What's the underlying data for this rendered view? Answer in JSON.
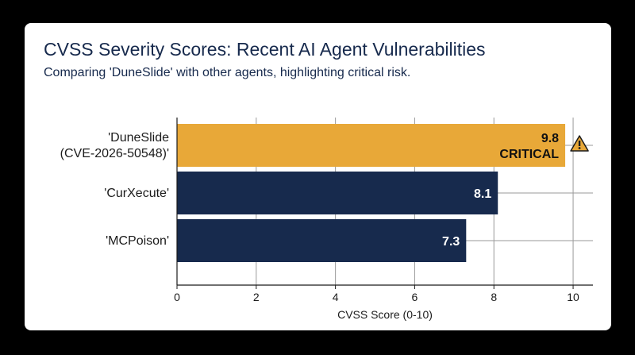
{
  "colors": {
    "background": "#000000",
    "card": "#ffffff",
    "highlight": "#e8a838",
    "bar": "#172a4d",
    "text": "#1b1b1b",
    "warning_icon": "#e8a838"
  },
  "chart_data": {
    "type": "bar",
    "orientation": "horizontal",
    "title": "CVSS Severity Scores: Recent AI Agent Vulnerabilities",
    "subtitle": "Comparing 'DuneSlide' with other agents, highlighting critical risk.",
    "xlabel": "CVSS Score (0-10)",
    "ylabel": "",
    "xlim": [
      0,
      10.5
    ],
    "xticks": [
      0,
      2,
      4,
      6,
      8,
      10
    ],
    "grid": "vertical",
    "categories": [
      [
        "'DuneSlide",
        "(CVE-2026-50548)'"
      ],
      [
        "'CurXecute'"
      ],
      [
        "'MCPoison'"
      ]
    ],
    "values": [
      9.8,
      8.1,
      7.3
    ],
    "value_labels": [
      "9.8",
      "8.1",
      "7.3"
    ],
    "annotations": [
      {
        "bar_index": 0,
        "text": "CRITICAL",
        "icon": "warning-icon"
      }
    ],
    "highlight_index": 0
  }
}
